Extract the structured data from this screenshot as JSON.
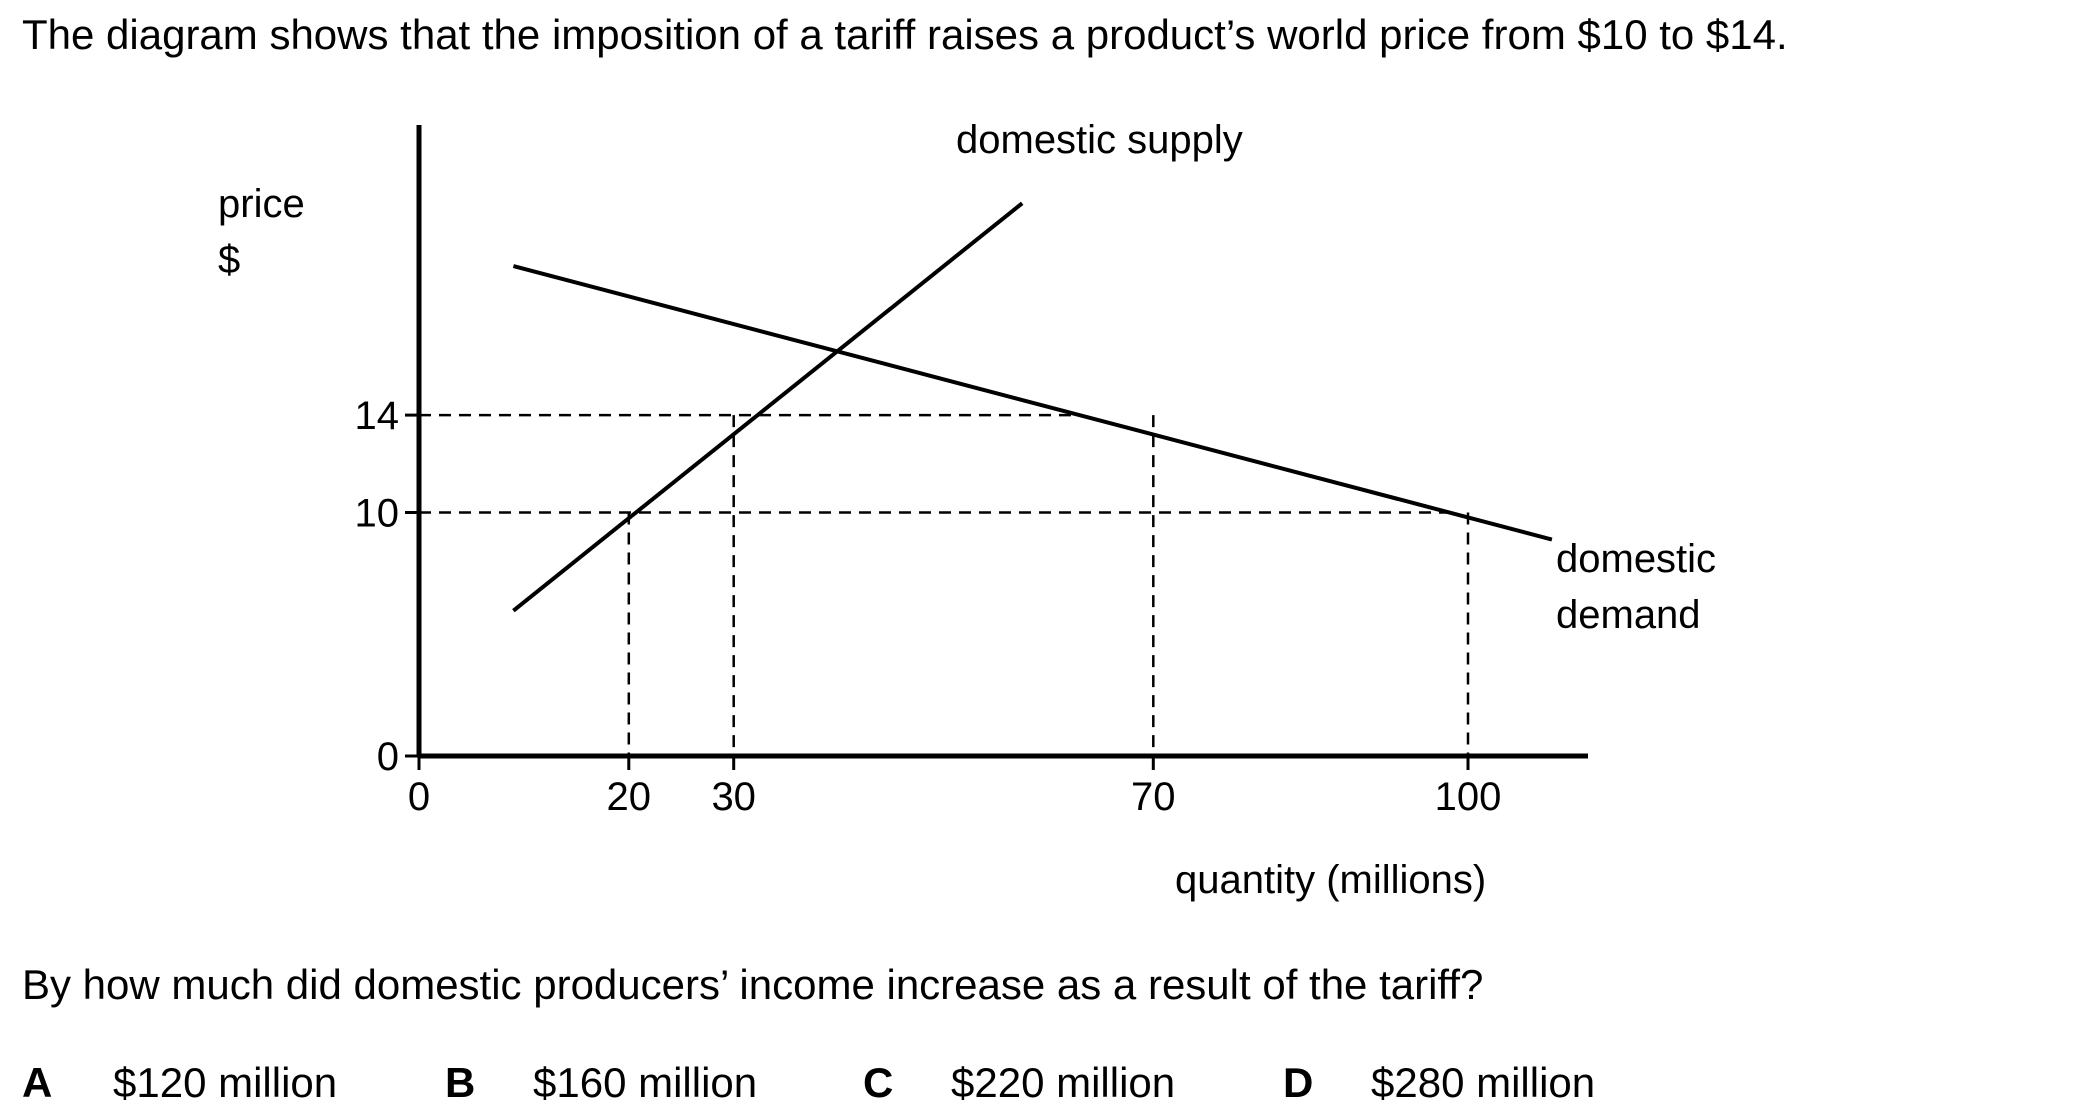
{
  "intro_text": "The diagram shows that the imposition of a tariff raises a product’s world price from $10 to $14.",
  "figure": {
    "y_axis_label": [
      "price",
      "$"
    ],
    "x_axis_label": "quantity (millions)",
    "y_ticks": [
      {
        "label": "14",
        "value": 14
      },
      {
        "label": "10",
        "value": 10
      },
      {
        "label": "0",
        "value": 0
      }
    ],
    "x_ticks": [
      {
        "label": "0",
        "value": 0
      },
      {
        "label": "20",
        "value": 20
      },
      {
        "label": "30",
        "value": 30
      },
      {
        "label": "70",
        "value": 70
      },
      {
        "label": "100",
        "value": 100
      }
    ],
    "supply_label": "domestic supply",
    "demand_label": [
      "domestic",
      "demand"
    ],
    "supply_curve": [
      [
        9,
        5.97
      ],
      [
        57.5,
        22.7
      ]
    ],
    "demand_curve": [
      [
        9,
        20.12
      ],
      [
        108,
        8.89
      ]
    ],
    "dashed_price_lines": [
      14,
      10
    ],
    "dashed_quantity_lines": [
      {
        "quantity": 20,
        "price": 10
      },
      {
        "quantity": 30,
        "price": 14
      },
      {
        "quantity": 70,
        "price": 14
      },
      {
        "quantity": 100,
        "price": 10
      }
    ]
  },
  "question": "By how much did domestic producers’ income increase as a result of the tariff?",
  "options": [
    {
      "letter": "A",
      "text": "$120 million"
    },
    {
      "letter": "B",
      "text": "$160 million"
    },
    {
      "letter": "C",
      "text": "$220 million"
    },
    {
      "letter": "D",
      "text": "$280 million"
    }
  ]
}
